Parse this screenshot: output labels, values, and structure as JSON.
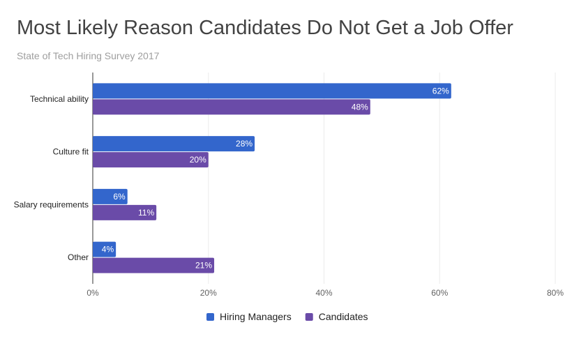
{
  "chart_data": {
    "type": "bar",
    "orientation": "horizontal",
    "title": "Most Likely Reason Candidates Do Not Get a Job Offer",
    "subtitle": "State of Tech Hiring Survey 2017",
    "categories": [
      "Technical ability",
      "Culture fit",
      "Salary requirements",
      "Other"
    ],
    "series": [
      {
        "name": "Hiring Managers",
        "color": "#3366cc",
        "values": [
          62,
          28,
          6,
          4
        ],
        "labels": [
          "62%",
          "28%",
          "6%",
          "4%"
        ]
      },
      {
        "name": "Candidates",
        "color": "#6a4ba8",
        "values": [
          48,
          20,
          11,
          21
        ],
        "labels": [
          "48%",
          "20%",
          "11%",
          "21%"
        ]
      }
    ],
    "xlim": [
      0,
      80
    ],
    "xticks": [
      0,
      20,
      40,
      60,
      80
    ],
    "xtick_labels": [
      "0%",
      "20%",
      "40%",
      "60%",
      "80%"
    ],
    "grid": true,
    "legend": "bottom"
  }
}
